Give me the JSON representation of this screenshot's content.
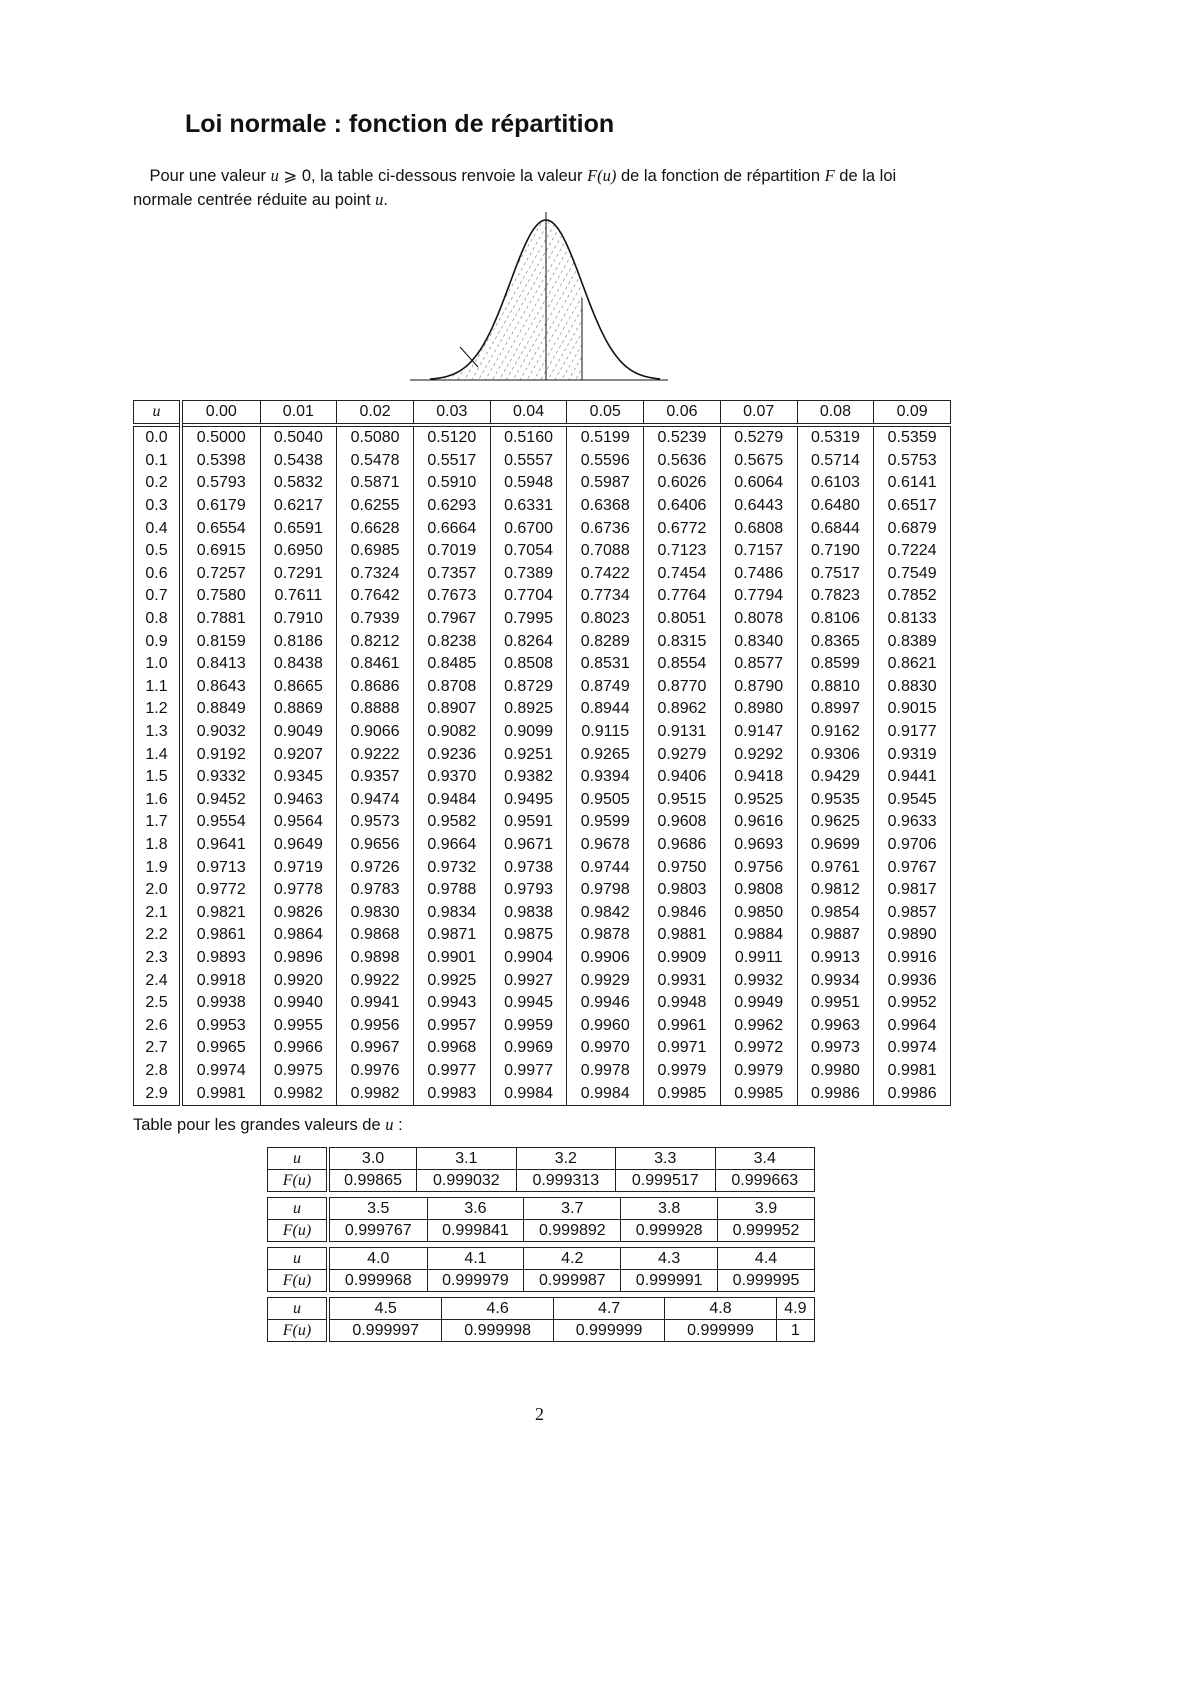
{
  "title": "Loi normale : fonction de répartition",
  "intro": {
    "p1": "Pour une valeur ",
    "var_u": "u",
    "cond": " ⩾ 0, la table ci-dessous renvoie la valeur ",
    "Fu": "F(u)",
    "p2": " de la fonction de répartition ",
    "F": "F",
    "p3": " de la loi normale centrée réduite au point ",
    "u2": "u",
    "end": "."
  },
  "main_table": {
    "header": [
      "u",
      "0.00",
      "0.01",
      "0.02",
      "0.03",
      "0.04",
      "0.05",
      "0.06",
      "0.07",
      "0.08",
      "0.09"
    ],
    "rows": [
      [
        "0.0",
        "0.5000",
        "0.5040",
        "0.5080",
        "0.5120",
        "0.5160",
        "0.5199",
        "0.5239",
        "0.5279",
        "0.5319",
        "0.5359"
      ],
      [
        "0.1",
        "0.5398",
        "0.5438",
        "0.5478",
        "0.5517",
        "0.5557",
        "0.5596",
        "0.5636",
        "0.5675",
        "0.5714",
        "0.5753"
      ],
      [
        "0.2",
        "0.5793",
        "0.5832",
        "0.5871",
        "0.5910",
        "0.5948",
        "0.5987",
        "0.6026",
        "0.6064",
        "0.6103",
        "0.6141"
      ],
      [
        "0.3",
        "0.6179",
        "0.6217",
        "0.6255",
        "0.6293",
        "0.6331",
        "0.6368",
        "0.6406",
        "0.6443",
        "0.6480",
        "0.6517"
      ],
      [
        "0.4",
        "0.6554",
        "0.6591",
        "0.6628",
        "0.6664",
        "0.6700",
        "0.6736",
        "0.6772",
        "0.6808",
        "0.6844",
        "0.6879"
      ],
      [
        "0.5",
        "0.6915",
        "0.6950",
        "0.6985",
        "0.7019",
        "0.7054",
        "0.7088",
        "0.7123",
        "0.7157",
        "0.7190",
        "0.7224"
      ],
      [
        "0.6",
        "0.7257",
        "0.7291",
        "0.7324",
        "0.7357",
        "0.7389",
        "0.7422",
        "0.7454",
        "0.7486",
        "0.7517",
        "0.7549"
      ],
      [
        "0.7",
        "0.7580",
        "0.7611",
        "0.7642",
        "0.7673",
        "0.7704",
        "0.7734",
        "0.7764",
        "0.7794",
        "0.7823",
        "0.7852"
      ],
      [
        "0.8",
        "0.7881",
        "0.7910",
        "0.7939",
        "0.7967",
        "0.7995",
        "0.8023",
        "0.8051",
        "0.8078",
        "0.8106",
        "0.8133"
      ],
      [
        "0.9",
        "0.8159",
        "0.8186",
        "0.8212",
        "0.8238",
        "0.8264",
        "0.8289",
        "0.8315",
        "0.8340",
        "0.8365",
        "0.8389"
      ],
      [
        "1.0",
        "0.8413",
        "0.8438",
        "0.8461",
        "0.8485",
        "0.8508",
        "0.8531",
        "0.8554",
        "0.8577",
        "0.8599",
        "0.8621"
      ],
      [
        "1.1",
        "0.8643",
        "0.8665",
        "0.8686",
        "0.8708",
        "0.8729",
        "0.8749",
        "0.8770",
        "0.8790",
        "0.8810",
        "0.8830"
      ],
      [
        "1.2",
        "0.8849",
        "0.8869",
        "0.8888",
        "0.8907",
        "0.8925",
        "0.8944",
        "0.8962",
        "0.8980",
        "0.8997",
        "0.9015"
      ],
      [
        "1.3",
        "0.9032",
        "0.9049",
        "0.9066",
        "0.9082",
        "0.9099",
        "0.9115",
        "0.9131",
        "0.9147",
        "0.9162",
        "0.9177"
      ],
      [
        "1.4",
        "0.9192",
        "0.9207",
        "0.9222",
        "0.9236",
        "0.9251",
        "0.9265",
        "0.9279",
        "0.9292",
        "0.9306",
        "0.9319"
      ],
      [
        "1.5",
        "0.9332",
        "0.9345",
        "0.9357",
        "0.9370",
        "0.9382",
        "0.9394",
        "0.9406",
        "0.9418",
        "0.9429",
        "0.9441"
      ],
      [
        "1.6",
        "0.9452",
        "0.9463",
        "0.9474",
        "0.9484",
        "0.9495",
        "0.9505",
        "0.9515",
        "0.9525",
        "0.9535",
        "0.9545"
      ],
      [
        "1.7",
        "0.9554",
        "0.9564",
        "0.9573",
        "0.9582",
        "0.9591",
        "0.9599",
        "0.9608",
        "0.9616",
        "0.9625",
        "0.9633"
      ],
      [
        "1.8",
        "0.9641",
        "0.9649",
        "0.9656",
        "0.9664",
        "0.9671",
        "0.9678",
        "0.9686",
        "0.9693",
        "0.9699",
        "0.9706"
      ],
      [
        "1.9",
        "0.9713",
        "0.9719",
        "0.9726",
        "0.9732",
        "0.9738",
        "0.9744",
        "0.9750",
        "0.9756",
        "0.9761",
        "0.9767"
      ],
      [
        "2.0",
        "0.9772",
        "0.9778",
        "0.9783",
        "0.9788",
        "0.9793",
        "0.9798",
        "0.9803",
        "0.9808",
        "0.9812",
        "0.9817"
      ],
      [
        "2.1",
        "0.9821",
        "0.9826",
        "0.9830",
        "0.9834",
        "0.9838",
        "0.9842",
        "0.9846",
        "0.9850",
        "0.9854",
        "0.9857"
      ],
      [
        "2.2",
        "0.9861",
        "0.9864",
        "0.9868",
        "0.9871",
        "0.9875",
        "0.9878",
        "0.9881",
        "0.9884",
        "0.9887",
        "0.9890"
      ],
      [
        "2.3",
        "0.9893",
        "0.9896",
        "0.9898",
        "0.9901",
        "0.9904",
        "0.9906",
        "0.9909",
        "0.9911",
        "0.9913",
        "0.9916"
      ],
      [
        "2.4",
        "0.9918",
        "0.9920",
        "0.9922",
        "0.9925",
        "0.9927",
        "0.9929",
        "0.9931",
        "0.9932",
        "0.9934",
        "0.9936"
      ],
      [
        "2.5",
        "0.9938",
        "0.9940",
        "0.9941",
        "0.9943",
        "0.9945",
        "0.9946",
        "0.9948",
        "0.9949",
        "0.9951",
        "0.9952"
      ],
      [
        "2.6",
        "0.9953",
        "0.9955",
        "0.9956",
        "0.9957",
        "0.9959",
        "0.9960",
        "0.9961",
        "0.9962",
        "0.9963",
        "0.9964"
      ],
      [
        "2.7",
        "0.9965",
        "0.9966",
        "0.9967",
        "0.9968",
        "0.9969",
        "0.9970",
        "0.9971",
        "0.9972",
        "0.9973",
        "0.9974"
      ],
      [
        "2.8",
        "0.9974",
        "0.9975",
        "0.9976",
        "0.9977",
        "0.9977",
        "0.9978",
        "0.9979",
        "0.9979",
        "0.9980",
        "0.9981"
      ],
      [
        "2.9",
        "0.9981",
        "0.9982",
        "0.9982",
        "0.9983",
        "0.9984",
        "0.9984",
        "0.9985",
        "0.9985",
        "0.9986",
        "0.9986"
      ]
    ]
  },
  "large_values": {
    "label_prefix": "Table pour les grandes valeurs de ",
    "label_var": "u",
    "label_suffix": " :",
    "row_u_label": "u",
    "row_F_label": "F(u)",
    "blocks": [
      {
        "u": [
          "3.0",
          "3.1",
          "3.2",
          "3.3",
          "3.4"
        ],
        "F": [
          "0.99865",
          "0.999032",
          "0.999313",
          "0.999517",
          "0.999663"
        ]
      },
      {
        "u": [
          "3.5",
          "3.6",
          "3.7",
          "3.8",
          "3.9"
        ],
        "F": [
          "0.999767",
          "0.999841",
          "0.999892",
          "0.999928",
          "0.999952"
        ]
      },
      {
        "u": [
          "4.0",
          "4.1",
          "4.2",
          "4.3",
          "4.4"
        ],
        "F": [
          "0.999968",
          "0.999979",
          "0.999987",
          "0.999991",
          "0.999995"
        ]
      },
      {
        "u": [
          "4.5",
          "4.6",
          "4.7",
          "4.8",
          "4.9"
        ],
        "F": [
          "0.999997",
          "0.999998",
          "0.999999",
          "0.999999",
          "1"
        ]
      }
    ]
  },
  "page_number": "2"
}
